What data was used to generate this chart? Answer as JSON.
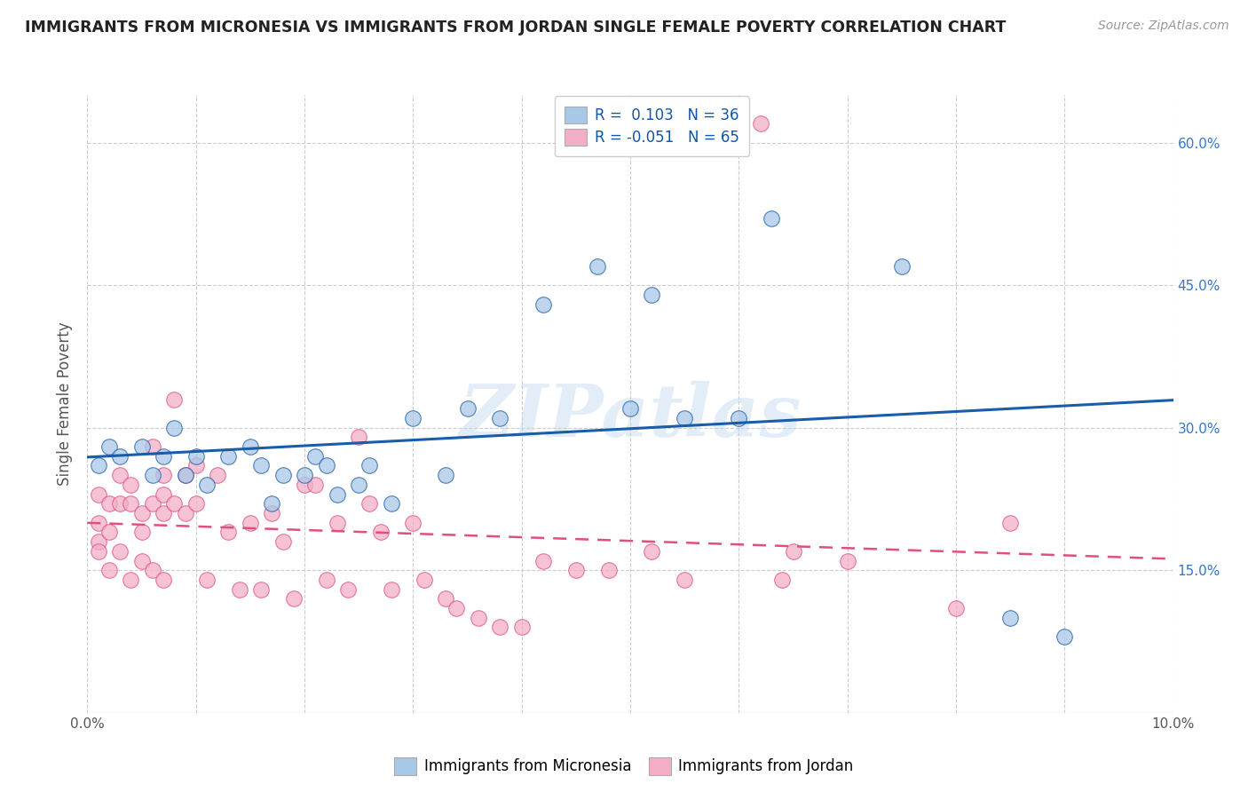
{
  "title": "IMMIGRANTS FROM MICRONESIA VS IMMIGRANTS FROM JORDAN SINGLE FEMALE POVERTY CORRELATION CHART",
  "source": "Source: ZipAtlas.com",
  "ylabel": "Single Female Poverty",
  "xlim": [
    0.0,
    0.1
  ],
  "ylim": [
    0.0,
    0.65
  ],
  "xticks": [
    0.0,
    0.01,
    0.02,
    0.03,
    0.04,
    0.05,
    0.06,
    0.07,
    0.08,
    0.09,
    0.1
  ],
  "xticklabels_show": [
    "0.0%",
    "10.0%"
  ],
  "yticks": [
    0.0,
    0.15,
    0.3,
    0.45,
    0.6
  ],
  "yticklabels": [
    "",
    "15.0%",
    "30.0%",
    "45.0%",
    "60.0%"
  ],
  "R_micro": 0.103,
  "N_micro": 36,
  "R_jordan": -0.051,
  "N_jordan": 65,
  "color_micro": "#a8c8e8",
  "color_jordan": "#f4aec8",
  "line_color_micro": "#1a5ca8",
  "line_color_jordan": "#e0507a",
  "background_color": "#ffffff",
  "grid_color": "#cccccc",
  "watermark_text": "ZIPatlas",
  "micro_x": [
    0.001,
    0.002,
    0.003,
    0.005,
    0.006,
    0.007,
    0.008,
    0.009,
    0.01,
    0.011,
    0.013,
    0.015,
    0.016,
    0.017,
    0.018,
    0.02,
    0.021,
    0.022,
    0.023,
    0.025,
    0.026,
    0.028,
    0.03,
    0.033,
    0.035,
    0.038,
    0.042,
    0.047,
    0.05,
    0.052,
    0.055,
    0.06,
    0.063,
    0.075,
    0.085,
    0.09
  ],
  "micro_y": [
    0.26,
    0.28,
    0.27,
    0.28,
    0.25,
    0.27,
    0.3,
    0.25,
    0.27,
    0.24,
    0.27,
    0.28,
    0.26,
    0.22,
    0.25,
    0.25,
    0.27,
    0.26,
    0.23,
    0.24,
    0.26,
    0.22,
    0.31,
    0.25,
    0.32,
    0.31,
    0.43,
    0.47,
    0.32,
    0.44,
    0.31,
    0.31,
    0.52,
    0.47,
    0.1,
    0.08
  ],
  "jordan_x": [
    0.001,
    0.001,
    0.001,
    0.001,
    0.002,
    0.002,
    0.002,
    0.003,
    0.003,
    0.003,
    0.004,
    0.004,
    0.004,
    0.005,
    0.005,
    0.005,
    0.006,
    0.006,
    0.006,
    0.007,
    0.007,
    0.007,
    0.007,
    0.008,
    0.008,
    0.009,
    0.009,
    0.01,
    0.01,
    0.011,
    0.012,
    0.013,
    0.014,
    0.015,
    0.016,
    0.017,
    0.018,
    0.019,
    0.02,
    0.021,
    0.022,
    0.023,
    0.024,
    0.025,
    0.026,
    0.027,
    0.028,
    0.03,
    0.031,
    0.033,
    0.034,
    0.036,
    0.038,
    0.04,
    0.042,
    0.045,
    0.048,
    0.052,
    0.055,
    0.062,
    0.064,
    0.065,
    0.07,
    0.08,
    0.085
  ],
  "jordan_y": [
    0.23,
    0.2,
    0.18,
    0.17,
    0.22,
    0.19,
    0.15,
    0.25,
    0.22,
    0.17,
    0.24,
    0.22,
    0.14,
    0.21,
    0.19,
    0.16,
    0.28,
    0.22,
    0.15,
    0.25,
    0.23,
    0.21,
    0.14,
    0.33,
    0.22,
    0.25,
    0.21,
    0.26,
    0.22,
    0.14,
    0.25,
    0.19,
    0.13,
    0.2,
    0.13,
    0.21,
    0.18,
    0.12,
    0.24,
    0.24,
    0.14,
    0.2,
    0.13,
    0.29,
    0.22,
    0.19,
    0.13,
    0.2,
    0.14,
    0.12,
    0.11,
    0.1,
    0.09,
    0.09,
    0.16,
    0.15,
    0.15,
    0.17,
    0.14,
    0.62,
    0.14,
    0.17,
    0.16,
    0.11,
    0.2
  ]
}
